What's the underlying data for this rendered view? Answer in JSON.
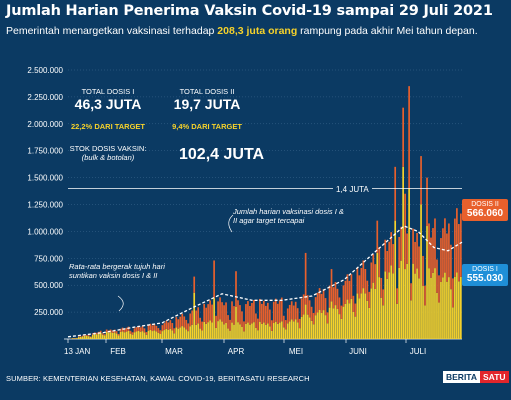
{
  "title": "Jumlah Harian Penerima Vaksin Covid-19 sampai 29 Juli 2021",
  "subtitle": {
    "before": "Pemerintah menargetkan vaksinasi terhadap ",
    "highlight": "208,3 juta orang",
    "after": " rampung pada akhir Mei tahun depan."
  },
  "stats": {
    "dose1_label": "TOTAL DOSIS I",
    "dose1_value": "46,3 JUTA",
    "dose1_target": "22,2% DARI TARGET",
    "dose2_label": "TOTAL DOSIS II",
    "dose2_value": "19,7 JUTA",
    "dose2_target": "9,4% DARI TARGET",
    "stock_label": "STOK DOSIS VAKSIN:",
    "stock_sub": "(bulk & botolan)",
    "stock_value": "102,4 JUTA"
  },
  "annotations": {
    "target_line": "1,4 JUTA",
    "target_note": "Jumlah harian vaksinasi dosis I & II agar target tercapai",
    "avg_note": "Rata-rata bergerak tujuh hari suntikan vaksin dosis I & II"
  },
  "badges": {
    "dose2_label": "DOSIS II",
    "dose2_value": "566.060",
    "dose1_label": "DOSIS I",
    "dose1_value": "555.030"
  },
  "footer": "SUMBER: KEMENTERIAN KESEHATAN, KAWAL COVID-19, BERITASATU RESEARCH",
  "logo": {
    "part1": "BERITA",
    "part2": "SATU"
  },
  "colors": {
    "background": "#0b3a63",
    "dose1": "#f6d22b",
    "dose2": "#e8602c",
    "badge_dose2": "#e8602c",
    "badge_dose1": "#1f8fd8",
    "accent_text": "#f6d22b"
  },
  "chart_data": {
    "type": "bar",
    "stacked": true,
    "x_start": "2021-01-13",
    "x_end": "2021-07-29",
    "x_tick_labels": [
      "13 JAN",
      "FEB",
      "MAR",
      "APR",
      "MEI",
      "JUNI",
      "JULI"
    ],
    "y_tick_labels": [
      "250.000",
      "500.000",
      "750.000",
      "1.000.000",
      "1.250.000",
      "1.500.000",
      "1.750.000",
      "2.000.000",
      "2.250.000",
      "2.500.000"
    ],
    "ylim": [
      0,
      2500000
    ],
    "grid": true,
    "reference_line": 1400000,
    "series": [
      {
        "name": "DOSIS I",
        "color": "#f6d22b",
        "segments": [
          {
            "from": "2021-01-13",
            "to": "2021-01-31",
            "start": 0,
            "end": 60000
          },
          {
            "from": "2021-02-01",
            "to": "2021-02-28",
            "start": 60000,
            "end": 80000
          },
          {
            "from": "2021-03-01",
            "to": "2021-03-31",
            "start": 80000,
            "end": 180000
          },
          {
            "from": "2021-04-01",
            "to": "2021-04-30",
            "start": 140000,
            "end": 150000
          },
          {
            "from": "2021-05-01",
            "to": "2021-05-31",
            "start": 150000,
            "end": 320000
          },
          {
            "from": "2021-06-01",
            "to": "2021-06-30",
            "start": 320000,
            "end": 700000
          },
          {
            "from": "2021-07-01",
            "to": "2021-07-29",
            "start": 650000,
            "end": 555030
          }
        ]
      },
      {
        "name": "DOSIS II",
        "color": "#e8602c",
        "segments": [
          {
            "from": "2021-01-13",
            "to": "2021-01-31",
            "start": 0,
            "end": 20000
          },
          {
            "from": "2021-02-01",
            "to": "2021-02-28",
            "start": 20000,
            "end": 60000
          },
          {
            "from": "2021-03-01",
            "to": "2021-03-31",
            "start": 60000,
            "end": 200000
          },
          {
            "from": "2021-04-01",
            "to": "2021-04-30",
            "start": 180000,
            "end": 200000
          },
          {
            "from": "2021-05-01",
            "to": "2021-05-31",
            "start": 150000,
            "end": 210000
          },
          {
            "from": "2021-06-01",
            "to": "2021-06-30",
            "start": 210000,
            "end": 300000
          },
          {
            "from": "2021-07-01",
            "to": "2021-07-29",
            "start": 250000,
            "end": 566060
          }
        ]
      }
    ],
    "spikes": [
      {
        "date": "2021-03-17",
        "dose1": 430000,
        "dose2": 150000
      },
      {
        "date": "2021-03-27",
        "dose1": 380000,
        "dose2": 350000
      },
      {
        "date": "2021-04-07",
        "dose1": 300000,
        "dose2": 330000
      },
      {
        "date": "2021-05-12",
        "dose1": 320000,
        "dose2": 480000
      },
      {
        "date": "2021-05-25",
        "dose1": 350000,
        "dose2": 300000
      },
      {
        "date": "2021-06-17",
        "dose1": 800000,
        "dose2": 300000
      },
      {
        "date": "2021-06-26",
        "dose1": 1100000,
        "dose2": 500000
      },
      {
        "date": "2021-06-30",
        "dose1": 1600000,
        "dose2": 550000
      },
      {
        "date": "2021-07-01",
        "dose1": 650000,
        "dose2": 700000
      },
      {
        "date": "2021-07-03",
        "dose1": 1400000,
        "dose2": 950000
      },
      {
        "date": "2021-07-09",
        "dose1": 1250000,
        "dose2": 450000
      },
      {
        "date": "2021-07-12",
        "dose1": 1050000,
        "dose2": 450000
      }
    ],
    "moving_average": {
      "name": "Rata-rata bergerak tujuh hari suntikan vaksin dosis I & II",
      "points": [
        {
          "date": "2021-01-13",
          "value": 20000
        },
        {
          "date": "2021-01-31",
          "value": 60000
        },
        {
          "date": "2021-02-15",
          "value": 110000
        },
        {
          "date": "2021-03-01",
          "value": 150000
        },
        {
          "date": "2021-03-15",
          "value": 280000
        },
        {
          "date": "2021-03-31",
          "value": 420000
        },
        {
          "date": "2021-04-15",
          "value": 360000
        },
        {
          "date": "2021-04-30",
          "value": 360000
        },
        {
          "date": "2021-05-15",
          "value": 400000
        },
        {
          "date": "2021-05-31",
          "value": 550000
        },
        {
          "date": "2021-06-15",
          "value": 800000
        },
        {
          "date": "2021-06-30",
          "value": 1050000
        },
        {
          "date": "2021-07-07",
          "value": 1000000
        },
        {
          "date": "2021-07-15",
          "value": 850000
        },
        {
          "date": "2021-07-22",
          "value": 820000
        },
        {
          "date": "2021-07-29",
          "value": 900000
        }
      ]
    }
  }
}
